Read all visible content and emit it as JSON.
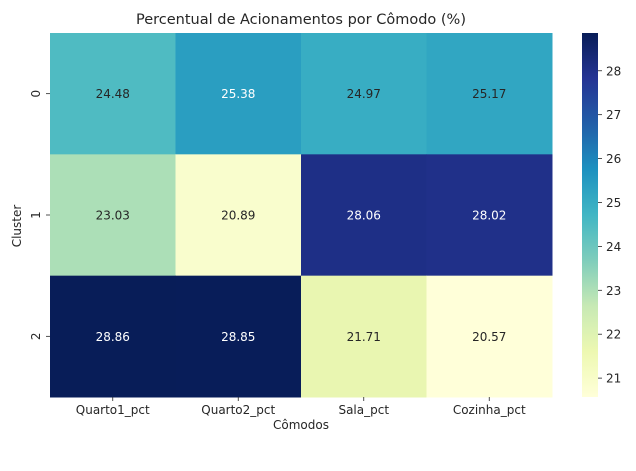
{
  "chart_data": {
    "type": "heatmap",
    "title": "Percentual de Acionamentos por Cômodo (%)",
    "xlabel": "Cômodos",
    "ylabel": "Cluster",
    "x_categories": [
      "Quarto1_pct",
      "Quarto2_pct",
      "Sala_pct",
      "Cozinha_pct"
    ],
    "y_categories": [
      "0",
      "1",
      "2"
    ],
    "values": [
      [
        24.48,
        25.38,
        24.97,
        25.17
      ],
      [
        23.03,
        20.89,
        28.06,
        28.02
      ],
      [
        28.86,
        28.85,
        21.71,
        20.57
      ]
    ],
    "annotations": [
      [
        "24.48",
        "25.38",
        "24.97",
        "25.17"
      ],
      [
        "23.03",
        "20.89",
        "28.06",
        "28.02"
      ],
      [
        "28.86",
        "28.85",
        "21.71",
        "20.57"
      ]
    ],
    "colormap": "YlGnBu",
    "colorbar": {
      "range": [
        20.57,
        28.86
      ],
      "ticks": [
        21,
        22,
        23,
        24,
        25,
        26,
        27,
        28
      ],
      "tick_labels": [
        "21",
        "22",
        "23",
        "24",
        "25",
        "26",
        "27",
        "28"
      ]
    },
    "colors": {
      "low": "#ffffd9",
      "high": "#081d58"
    }
  }
}
